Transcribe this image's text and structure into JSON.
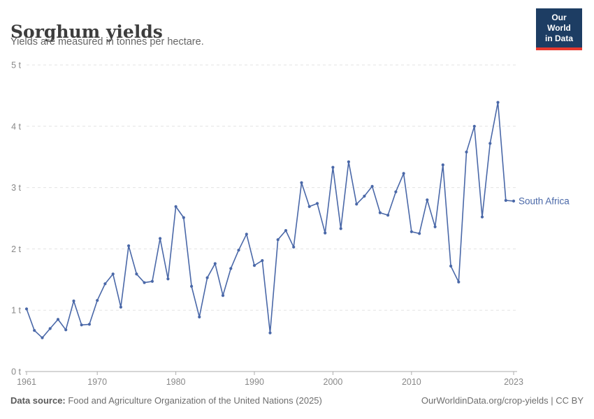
{
  "header": {
    "title": "Sorghum yields",
    "subtitle": "Yields are measured in tonnes per hectare."
  },
  "logo": {
    "line1": "Our World",
    "line2": "in Data",
    "bg_color": "#1d3d63",
    "accent_color": "#e8392e"
  },
  "footer": {
    "source_label": "Data source:",
    "source_text": " Food and Agriculture Organization of the United Nations (2025)",
    "credit": "OurWorldinData.org/crop-yields | CC BY"
  },
  "colors": {
    "series_blue": "#4a68a8",
    "grid": "#e3e3e3",
    "axis": "#adadad",
    "tick_text": "#888888"
  },
  "chart_data": {
    "type": "line",
    "title": "Sorghum yields",
    "subtitle": "Yields are measured in tonnes per hectare.",
    "unit": "tonnes per hectare",
    "xlabel": "",
    "ylabel": "",
    "ylim": [
      0,
      5
    ],
    "yticks": [
      0,
      1,
      2,
      3,
      4,
      5
    ],
    "ytick_labels": [
      "0 t",
      "1 t",
      "2 t",
      "3 t",
      "4 t",
      "5 t"
    ],
    "xticks": [
      1961,
      1970,
      1980,
      1990,
      2000,
      2010,
      2023
    ],
    "grid": "horizontal-dashed",
    "legend_position": "end-of-line-label",
    "series": [
      {
        "name": "South Africa",
        "color": "#4a68a8",
        "x": [
          1961,
          1962,
          1963,
          1964,
          1965,
          1966,
          1967,
          1968,
          1969,
          1970,
          1971,
          1972,
          1973,
          1974,
          1975,
          1976,
          1977,
          1978,
          1979,
          1980,
          1981,
          1982,
          1983,
          1984,
          1985,
          1986,
          1987,
          1988,
          1989,
          1990,
          1991,
          1992,
          1993,
          1994,
          1995,
          1996,
          1997,
          1998,
          1999,
          2000,
          2001,
          2002,
          2003,
          2004,
          2005,
          2006,
          2007,
          2008,
          2009,
          2010,
          2011,
          2012,
          2013,
          2014,
          2015,
          2016,
          2017,
          2018,
          2019,
          2020,
          2021,
          2022,
          2023
        ],
        "values": [
          1.02,
          0.67,
          0.55,
          0.7,
          0.85,
          0.68,
          1.15,
          0.76,
          0.77,
          1.16,
          1.43,
          1.59,
          1.05,
          2.05,
          1.59,
          1.45,
          1.47,
          2.17,
          1.51,
          2.69,
          2.51,
          1.39,
          0.89,
          1.53,
          1.76,
          1.24,
          1.68,
          1.98,
          2.24,
          1.73,
          1.81,
          0.63,
          2.15,
          2.3,
          2.03,
          3.08,
          2.69,
          2.74,
          2.26,
          3.33,
          2.33,
          3.42,
          2.73,
          2.86,
          3.02,
          2.59,
          2.55,
          2.93,
          3.23,
          2.28,
          2.25,
          2.8,
          2.36,
          3.37,
          1.72,
          1.46,
          3.58,
          4.0,
          2.52,
          3.72,
          4.39,
          2.79,
          2.78
        ]
      }
    ]
  }
}
